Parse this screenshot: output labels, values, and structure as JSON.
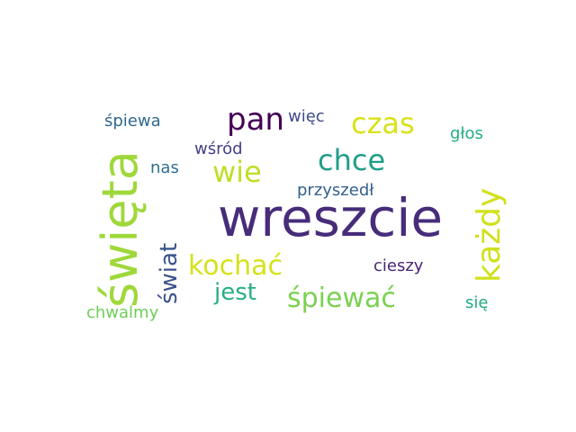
{
  "words": [
    {
      "text": "wreszcie",
      "color": "#472c7a"
    },
    {
      "text": "święta",
      "color": "#9fd83a"
    },
    {
      "text": "każdy",
      "color": "#d0e11c"
    },
    {
      "text": "pan",
      "color": "#440154"
    },
    {
      "text": "czas",
      "color": "#d8e219"
    },
    {
      "text": "chce",
      "color": "#1f9e89"
    },
    {
      "text": "wie",
      "color": "#bddf26"
    },
    {
      "text": "kochać",
      "color": "#d5e21a"
    },
    {
      "text": "śpiewać",
      "color": "#7ad151"
    },
    {
      "text": "jest",
      "color": "#29af7f"
    },
    {
      "text": "świat",
      "color": "#3b528b"
    },
    {
      "text": "śpiewa",
      "color": "#31688e"
    },
    {
      "text": "więc",
      "color": "#3e4c8a"
    },
    {
      "text": "głos",
      "color": "#25ab82"
    },
    {
      "text": "wśród",
      "color": "#424086"
    },
    {
      "text": "nas",
      "color": "#2c718e"
    },
    {
      "text": "przyszedł",
      "color": "#35608d"
    },
    {
      "text": "cieszy",
      "color": "#482576"
    },
    {
      "text": "chwalmy",
      "color": "#6ece58"
    },
    {
      "text": "się",
      "color": "#23a983"
    }
  ]
}
